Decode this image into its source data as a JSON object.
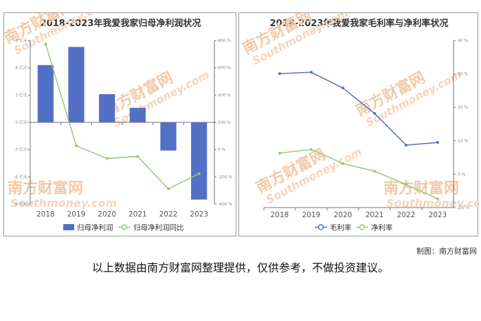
{
  "watermark": {
    "cn": "南方财富网",
    "en": "Southmoney.com"
  },
  "credit": "制图：南方财富网",
  "footnote": "以上数据由南方财富网整理提供，仅供参考，不做投资建议。",
  "colors": {
    "bar": "#5470c6",
    "green": "#91cc75",
    "blue": "#5470c6",
    "axis": "#6e7079",
    "grid": "#e0e6f1"
  },
  "chart_data": [
    {
      "type": "bar",
      "title": "2018-2023年我爱我家归母净利润状况",
      "categories": [
        "2018",
        "2019",
        "2020",
        "2021",
        "2022",
        "2023"
      ],
      "series": [
        {
          "name": "归母净利润",
          "type": "bar",
          "axis": "left",
          "values": [
            6.3,
            8.3,
            3.1,
            1.6,
            -3.1,
            -8.5
          ]
        },
        {
          "name": "归母净利润同比",
          "type": "line",
          "axis": "right",
          "values": [
            775,
            28,
            -65,
            -50,
            -288,
            -176
          ]
        }
      ],
      "left_axis": {
        "ticks": [
          "9 亿元",
          "6 亿元",
          "3 亿元",
          "0 亿元",
          "-3 亿元",
          "-6 亿元",
          "-9 亿元"
        ],
        "ylim": [
          -9,
          9
        ]
      },
      "right_axis": {
        "ticks": [
          "800 %",
          "600 %",
          "400 %",
          "200 %",
          "0 %",
          "-200 %",
          "-400 %"
        ],
        "ylim": [
          -400,
          800
        ]
      },
      "legend": "bottom"
    },
    {
      "type": "line",
      "title": "2018-2023年我爱我家毛利率与净利率状况",
      "categories": [
        "2018",
        "2019",
        "2020",
        "2021",
        "2022",
        "2023"
      ],
      "series": [
        {
          "name": "毛利率",
          "axis": "right",
          "values": [
            30.1,
            30.5,
            25.8,
            18.2,
            8.7,
            9.5
          ]
        },
        {
          "name": "净利率",
          "axis": "right",
          "values": [
            6.3,
            7.4,
            3.2,
            0.9,
            -3.1,
            -7.4
          ]
        }
      ],
      "right_axis": {
        "ticks": [
          "40 %",
          "30 %",
          "20 %",
          "10 %",
          "0 %",
          "-10 %"
        ],
        "ylim": [
          -10,
          40
        ]
      },
      "legend": "bottom"
    }
  ]
}
